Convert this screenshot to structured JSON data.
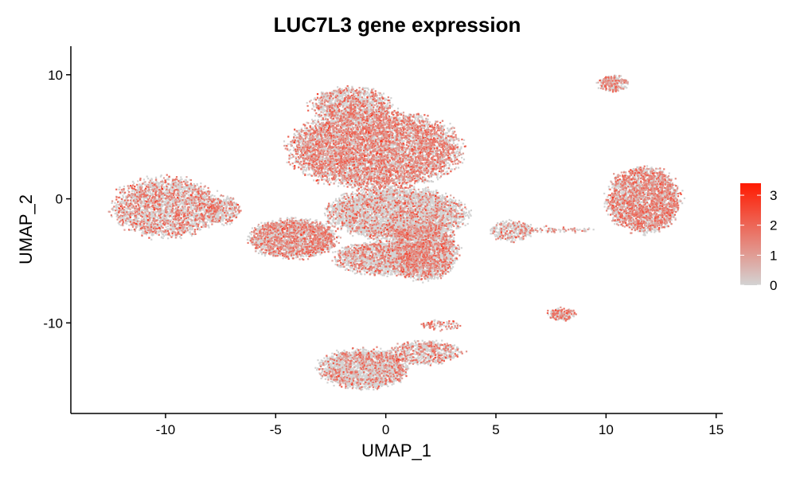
{
  "chart_data": {
    "type": "scatter",
    "title": "LUC7L3 gene expression",
    "xlabel": "UMAP_1",
    "ylabel": "UMAP_2",
    "xlim": [
      -14.3,
      15.3
    ],
    "ylim": [
      -17.3,
      12.3
    ],
    "x_ticks": [
      -10,
      -5,
      0,
      5,
      10,
      15
    ],
    "x_tick_labels": [
      "-10",
      "-5",
      "0",
      "5",
      "10",
      "15"
    ],
    "y_ticks": [
      -10,
      0,
      10
    ],
    "y_tick_labels": [
      "-10",
      "0",
      "10"
    ],
    "grid": false,
    "legend": {
      "placement": "right",
      "min": 0,
      "max": 3.4,
      "ticks": [
        0,
        1,
        2,
        3
      ],
      "tick_labels": [
        "0",
        "1",
        "2",
        "3"
      ],
      "low_color": "#d3d3d3",
      "high_color": "#ff1a00"
    },
    "clusters": [
      {
        "name": "left-large",
        "cx": -10.0,
        "cy": -0.7,
        "rx": 2.3,
        "ry": 2.3,
        "n": 2600,
        "expr": 0.34,
        "shape": "blob"
      },
      {
        "name": "left-bridge",
        "cx": -7.4,
        "cy": -0.9,
        "rx": 0.7,
        "ry": 1.1,
        "n": 420,
        "expr": 0.28,
        "shape": "blob"
      },
      {
        "name": "center-top-main",
        "cx": -0.5,
        "cy": 4.0,
        "rx": 3.7,
        "ry": 3.0,
        "n": 7200,
        "expr": 0.45,
        "shape": "blob"
      },
      {
        "name": "center-top-dome",
        "cx": -1.6,
        "cy": 7.6,
        "rx": 1.7,
        "ry": 1.3,
        "n": 1200,
        "expr": 0.32,
        "shape": "blob"
      },
      {
        "name": "center-mid",
        "cx": 0.5,
        "cy": -1.2,
        "rx": 3.0,
        "ry": 2.0,
        "n": 4200,
        "expr": 0.22,
        "shape": "blob"
      },
      {
        "name": "center-left-arm",
        "cx": -4.2,
        "cy": -3.2,
        "rx": 1.9,
        "ry": 1.5,
        "n": 2300,
        "expr": 0.4,
        "shape": "blob"
      },
      {
        "name": "center-lower-right",
        "cx": 1.7,
        "cy": -4.2,
        "rx": 1.5,
        "ry": 2.2,
        "n": 2600,
        "expr": 0.3,
        "shape": "blob"
      },
      {
        "name": "center-lower",
        "cx": 0.0,
        "cy": -4.8,
        "rx": 2.2,
        "ry": 1.3,
        "n": 1800,
        "expr": 0.27,
        "shape": "blob"
      },
      {
        "name": "right-large",
        "cx": 11.7,
        "cy": -0.1,
        "rx": 1.6,
        "ry": 2.5,
        "n": 2800,
        "expr": 0.48,
        "shape": "blob"
      },
      {
        "name": "top-right-small",
        "cx": 10.3,
        "cy": 9.3,
        "rx": 0.65,
        "ry": 0.6,
        "n": 260,
        "expr": 0.5,
        "shape": "blob"
      },
      {
        "name": "mid-right-small",
        "cx": 5.7,
        "cy": -2.6,
        "rx": 0.9,
        "ry": 0.8,
        "n": 320,
        "expr": 0.28,
        "shape": "blob"
      },
      {
        "name": "mid-right-strand",
        "cx": 7.8,
        "cy": -2.5,
        "rx": 1.6,
        "ry": 0.15,
        "n": 80,
        "expr": 0.35,
        "shape": "blob"
      },
      {
        "name": "lower-right-small",
        "cx": 8.0,
        "cy": -9.3,
        "rx": 0.6,
        "ry": 0.45,
        "n": 180,
        "expr": 0.55,
        "shape": "blob"
      },
      {
        "name": "bottom-main",
        "cx": -1.0,
        "cy": -13.7,
        "rx": 1.9,
        "ry": 1.5,
        "n": 2200,
        "expr": 0.24,
        "shape": "blob"
      },
      {
        "name": "bottom-right-arm",
        "cx": 1.8,
        "cy": -12.4,
        "rx": 1.6,
        "ry": 0.9,
        "n": 700,
        "expr": 0.3,
        "shape": "blob"
      },
      {
        "name": "bottom-top-spike",
        "cx": 2.5,
        "cy": -10.2,
        "rx": 0.9,
        "ry": 0.35,
        "n": 90,
        "expr": 0.55,
        "shape": "blob"
      }
    ]
  }
}
